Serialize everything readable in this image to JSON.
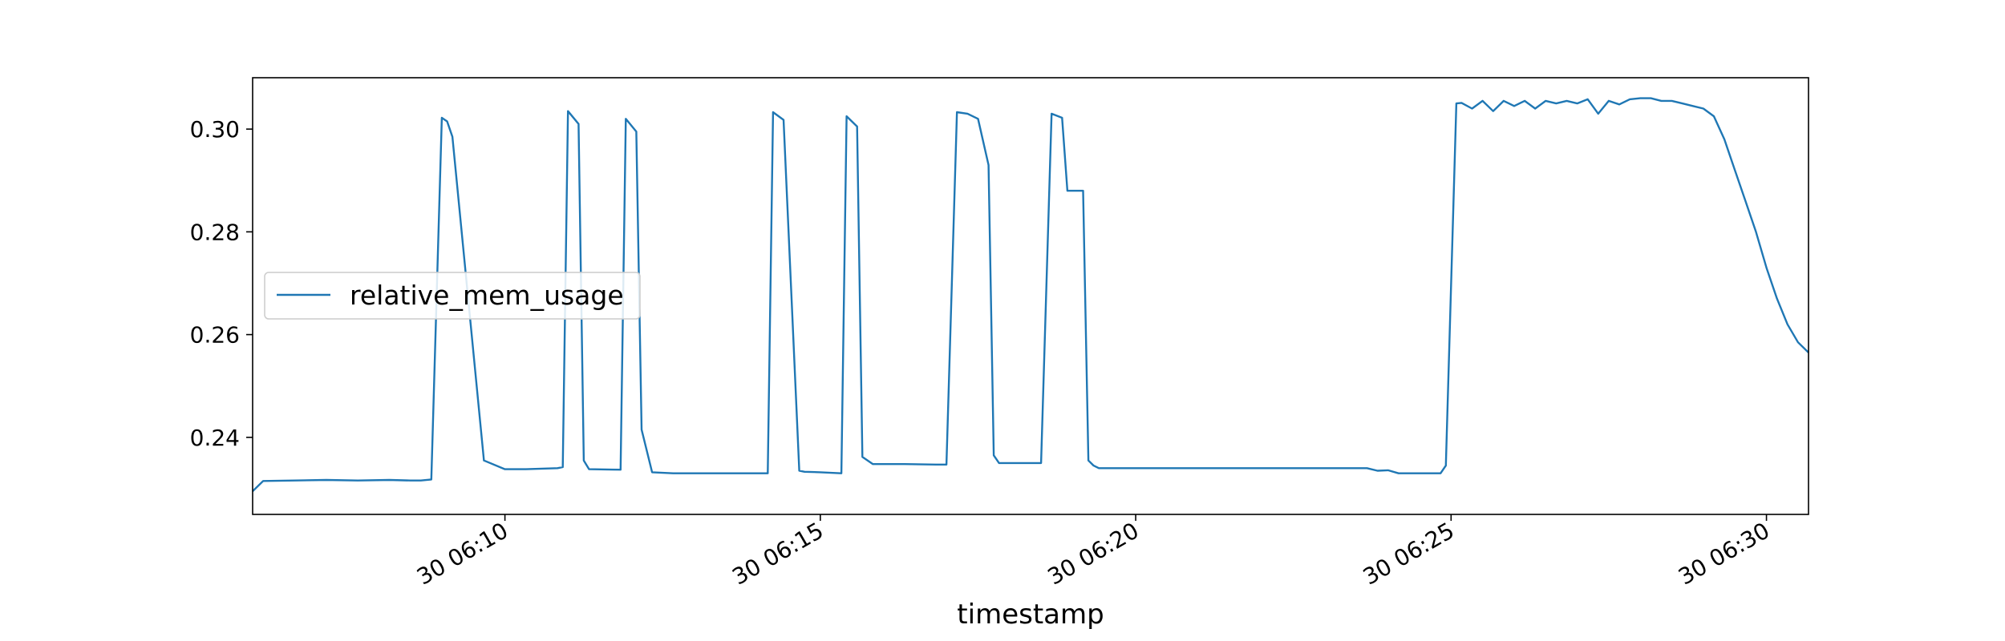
{
  "chart_data": {
    "type": "line",
    "title": "",
    "xlabel": "timestamp",
    "ylabel": "",
    "xlim": [
      "06:06:00",
      "06:30:40"
    ],
    "ylim": [
      0.225,
      0.31
    ],
    "x_ticks": [
      {
        "t": "06:10:00",
        "label": "30 06:10"
      },
      {
        "t": "06:15:00",
        "label": "30 06:15"
      },
      {
        "t": "06:20:00",
        "label": "30 06:20"
      },
      {
        "t": "06:25:00",
        "label": "30 06:25"
      },
      {
        "t": "06:30:00",
        "label": "30 06:30"
      }
    ],
    "y_ticks": [
      {
        "v": 0.24,
        "label": "0.24"
      },
      {
        "v": 0.26,
        "label": "0.26"
      },
      {
        "v": 0.28,
        "label": "0.28"
      },
      {
        "v": 0.3,
        "label": "0.30"
      }
    ],
    "grid": false,
    "legend": {
      "position": "center-left",
      "entries": [
        "relative_mem_usage"
      ]
    },
    "colors": {
      "series": "#1f77b4",
      "axes": "#000000",
      "legend_border": "#cccccc"
    },
    "series": [
      {
        "name": "relative_mem_usage",
        "x": [
          "06:06:00",
          "06:06:10",
          "06:06:40",
          "06:07:10",
          "06:07:40",
          "06:08:10",
          "06:08:30",
          "06:08:35",
          "06:08:40",
          "06:08:50",
          "06:09:00",
          "06:09:05",
          "06:09:10",
          "06:09:40",
          "06:10:00",
          "06:10:20",
          "06:10:50",
          "06:10:55",
          "06:11:00",
          "06:11:10",
          "06:11:15",
          "06:11:20",
          "06:11:50",
          "06:11:55",
          "06:12:05",
          "06:12:10",
          "06:12:20",
          "06:12:40",
          "06:13:10",
          "06:13:40",
          "06:14:10",
          "06:14:15",
          "06:14:25",
          "06:14:40",
          "06:14:45",
          "06:15:00",
          "06:15:20",
          "06:15:25",
          "06:15:35",
          "06:15:40",
          "06:15:50",
          "06:16:20",
          "06:16:50",
          "06:17:00",
          "06:17:10",
          "06:17:20",
          "06:17:30",
          "06:17:40",
          "06:17:45",
          "06:17:50",
          "06:18:00",
          "06:18:30",
          "06:18:40",
          "06:18:50",
          "06:18:55",
          "06:19:10",
          "06:19:15",
          "06:19:20",
          "06:19:25",
          "06:19:40",
          "06:20:10",
          "06:20:40",
          "06:21:10",
          "06:21:40",
          "06:22:10",
          "06:22:40",
          "06:23:10",
          "06:23:40",
          "06:23:50",
          "06:24:00",
          "06:24:10",
          "06:24:20",
          "06:24:50",
          "06:24:55",
          "06:25:05",
          "06:25:10",
          "06:25:20",
          "06:25:30",
          "06:25:40",
          "06:25:50",
          "06:26:00",
          "06:26:10",
          "06:26:20",
          "06:26:30",
          "06:26:40",
          "06:26:50",
          "06:27:00",
          "06:27:10",
          "06:27:20",
          "06:27:30",
          "06:27:40",
          "06:27:50",
          "06:28:00",
          "06:28:10",
          "06:28:20",
          "06:28:30",
          "06:28:40",
          "06:28:50",
          "06:29:00",
          "06:29:10",
          "06:29:20",
          "06:29:30",
          "06:29:40",
          "06:29:50",
          "06:30:00",
          "06:30:10",
          "06:30:20",
          "06:30:30",
          "06:30:40"
        ],
        "y": [
          0.2295,
          0.2315,
          0.2316,
          0.2317,
          0.2316,
          0.2317,
          0.2316,
          0.2316,
          0.2316,
          0.2318,
          0.3022,
          0.3015,
          0.2985,
          0.2355,
          0.2338,
          0.2338,
          0.234,
          0.2342,
          0.3035,
          0.301,
          0.2355,
          0.2338,
          0.2337,
          0.302,
          0.2995,
          0.2415,
          0.2332,
          0.233,
          0.233,
          0.233,
          0.233,
          0.3033,
          0.3018,
          0.2335,
          0.2333,
          0.2332,
          0.233,
          0.3025,
          0.3005,
          0.2362,
          0.2348,
          0.2348,
          0.2347,
          0.2347,
          0.3033,
          0.303,
          0.302,
          0.293,
          0.2365,
          0.235,
          0.235,
          0.235,
          0.303,
          0.3022,
          0.288,
          0.288,
          0.2355,
          0.2345,
          0.234,
          0.234,
          0.234,
          0.234,
          0.234,
          0.234,
          0.234,
          0.234,
          0.234,
          0.234,
          0.2335,
          0.2336,
          0.233,
          0.233,
          0.233,
          0.2345,
          0.305,
          0.3051,
          0.304,
          0.3055,
          0.3035,
          0.3055,
          0.3045,
          0.3055,
          0.304,
          0.3055,
          0.305,
          0.3055,
          0.305,
          0.3058,
          0.303,
          0.3055,
          0.3048,
          0.3058,
          0.306,
          0.306,
          0.3055,
          0.3055,
          0.305,
          0.3045,
          0.304,
          0.3025,
          0.298,
          0.292,
          0.286,
          0.28,
          0.273,
          0.267,
          0.262,
          0.2585,
          0.2565
        ]
      }
    ]
  }
}
